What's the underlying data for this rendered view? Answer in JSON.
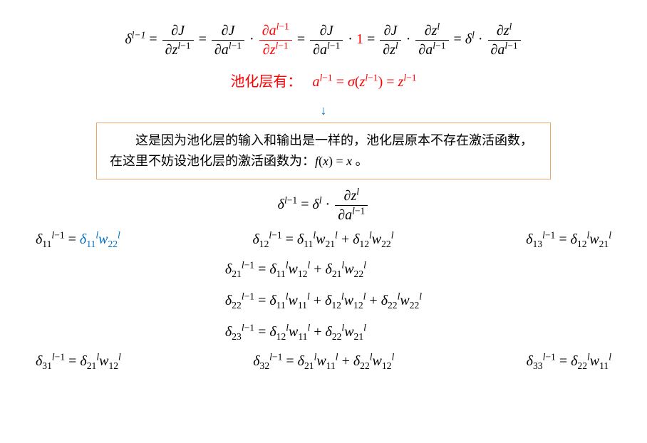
{
  "colors": {
    "red": "#ff0000",
    "blue": "#0070c0",
    "box_border": "#e8a868",
    "text": "#000000",
    "bg": "#ffffff"
  },
  "main_eq": {
    "lhs": "δ<sup class='it'>l</sup><sup>−1</sup>",
    "step1_num": "∂<span class='it'>J</span>",
    "step1_den": "∂<span class='it'>z</span><sup class='it'>l</sup><sup>−1</sup>",
    "step2a_num": "∂<span class='it'>J</span>",
    "step2a_den": "∂<span class='it'>a</span><sup class='it'>l</sup><sup>−1</sup>",
    "step2b_num_red": "∂<span class='it'>a</span><sup class='it'>l</sup><sup>−1</sup>",
    "step2b_den_red": "∂<span class='it'>z</span><sup class='it'>l</sup><sup>−1</sup>",
    "step3a_num": "∂<span class='it'>J</span>",
    "step3a_den": "∂<span class='it'>a</span><sup class='it'>l</sup><sup>−1</sup>",
    "step3b_red": "1",
    "step4a_num": "∂<span class='it'>J</span>",
    "step4a_den": "∂<span class='it'>z</span><sup class='it'>l</sup>",
    "step4b_num": "∂<span class='it'>z</span><sup class='it'>l</sup>",
    "step4b_den": "∂<span class='it'>a</span><sup class='it'>l</sup><sup>−1</sup>",
    "step5a": "<span class='it'>δ</span><sup class='it'>l</sup>",
    "step5b_num": "∂<span class='it'>z</span><sup class='it'>l</sup>",
    "step5b_den": "∂<span class='it'>a</span><sup class='it'>l</sup><sup>−1</sup>"
  },
  "pool_line": {
    "label": "池化层有：",
    "eq": "<span class='it'>a</span><sup class='it'>l</sup><sup>−1</sup> = <span class='it'>σ</span>(<span class='it'>z</span><sup class='it'>l</sup><sup>−1</sup>) = <span class='it'>z</span><sup class='it'>l</sup><sup>−1</sup>"
  },
  "box_text": "　　这是因为池化层的输入和输出是一样的，池化层原本不存在激活函数，在这里不妨设池化层的激活函数为：<span class='it'>f</span>(<span class='it'>x</span>) = <span class='it'>x</span> 。",
  "core_eq": "<span class='it'>δ</span><sup class='it'>l</sup><sup>−1</sup> = <span class='it'>δ</span><sup class='it'>l</sup> · ",
  "core_frac_num": "∂<span class='it'>z</span><sup class='it'>l</sup>",
  "core_frac_den": "∂<span class='it'>a</span><sup class='it'>l</sup><sup>−1</sup>",
  "row1": {
    "c1_lhs": "<span class='it'>δ</span><sub>11</sub><sup class='it'>l</sup><sup>−1</sup> = ",
    "c1_rhs_blue": "<span class='it'>δ</span><sub>11</sub><sup class='it'>l</sup><span class='it'>w</span><sub>22</sub><sup class='it'>l</sup>",
    "c2": "<span class='it'>δ</span><sub>12</sub><sup class='it'>l</sup><sup>−1</sup> = <span class='it'>δ</span><sub>11</sub><sup class='it'>l</sup><span class='it'>w</span><sub>21</sub><sup class='it'>l</sup> + <span class='it'>δ</span><sub>12</sub><sup class='it'>l</sup><span class='it'>w</span><sub>22</sub><sup class='it'>l</sup>",
    "c3": "<span class='it'>δ</span><sub>13</sub><sup class='it'>l</sup><sup>−1</sup> = <span class='it'>δ</span><sub>12</sub><sup class='it'>l</sup><span class='it'>w</span><sub>21</sub><sup class='it'>l</sup>"
  },
  "block2": {
    "r1": "<span class='it'>δ</span><sub>21</sub><sup class='it'>l</sup><sup>−1</sup> = <span class='it'>δ</span><sub>11</sub><sup class='it'>l</sup><span class='it'>w</span><sub>12</sub><sup class='it'>l</sup> + <span class='it'>δ</span><sub>21</sub><sup class='it'>l</sup><span class='it'>w</span><sub>22</sub><sup class='it'>l</sup>",
    "r2": "<span class='it'>δ</span><sub>22</sub><sup class='it'>l</sup><sup>−1</sup> = <span class='it'>δ</span><sub>11</sub><sup class='it'>l</sup><span class='it'>w</span><sub>11</sub><sup class='it'>l</sup> + <span class='it'>δ</span><sub>12</sub><sup class='it'>l</sup><span class='it'>w</span><sub>12</sub><sup class='it'>l</sup> + <span class='it'>δ</span><sub>22</sub><sup class='it'>l</sup><span class='it'>w</span><sub>22</sub><sup class='it'>l</sup>",
    "r3": "<span class='it'>δ</span><sub>23</sub><sup class='it'>l</sup><sup>−1</sup> = <span class='it'>δ</span><sub>12</sub><sup class='it'>l</sup><span class='it'>w</span><sub>11</sub><sup class='it'>l</sup> + <span class='it'>δ</span><sub>22</sub><sup class='it'>l</sup><span class='it'>w</span><sub>21</sub><sup class='it'>l</sup>"
  },
  "row3": {
    "c1": "<span class='it'>δ</span><sub>31</sub><sup class='it'>l</sup><sup>−1</sup> = <span class='it'>δ</span><sub>21</sub><sup class='it'>l</sup><span class='it'>w</span><sub>12</sub><sup class='it'>l</sup>",
    "c2": "<span class='it'>δ</span><sub>32</sub><sup class='it'>l</sup><sup>−1</sup> = <span class='it'>δ</span><sub>21</sub><sup class='it'>l</sup><span class='it'>w</span><sub>11</sub><sup class='it'>l</sup> + <span class='it'>δ</span><sub>22</sub><sup class='it'>l</sup><span class='it'>w</span><sub>12</sub><sup class='it'>l</sup>",
    "c3": "<span class='it'>δ</span><sub>33</sub><sup class='it'>l</sup><sup>−1</sup> = <span class='it'>δ</span><sub>22</sub><sup class='it'>l</sup><span class='it'>w</span><sub>11</sub><sup class='it'>l</sup>"
  }
}
